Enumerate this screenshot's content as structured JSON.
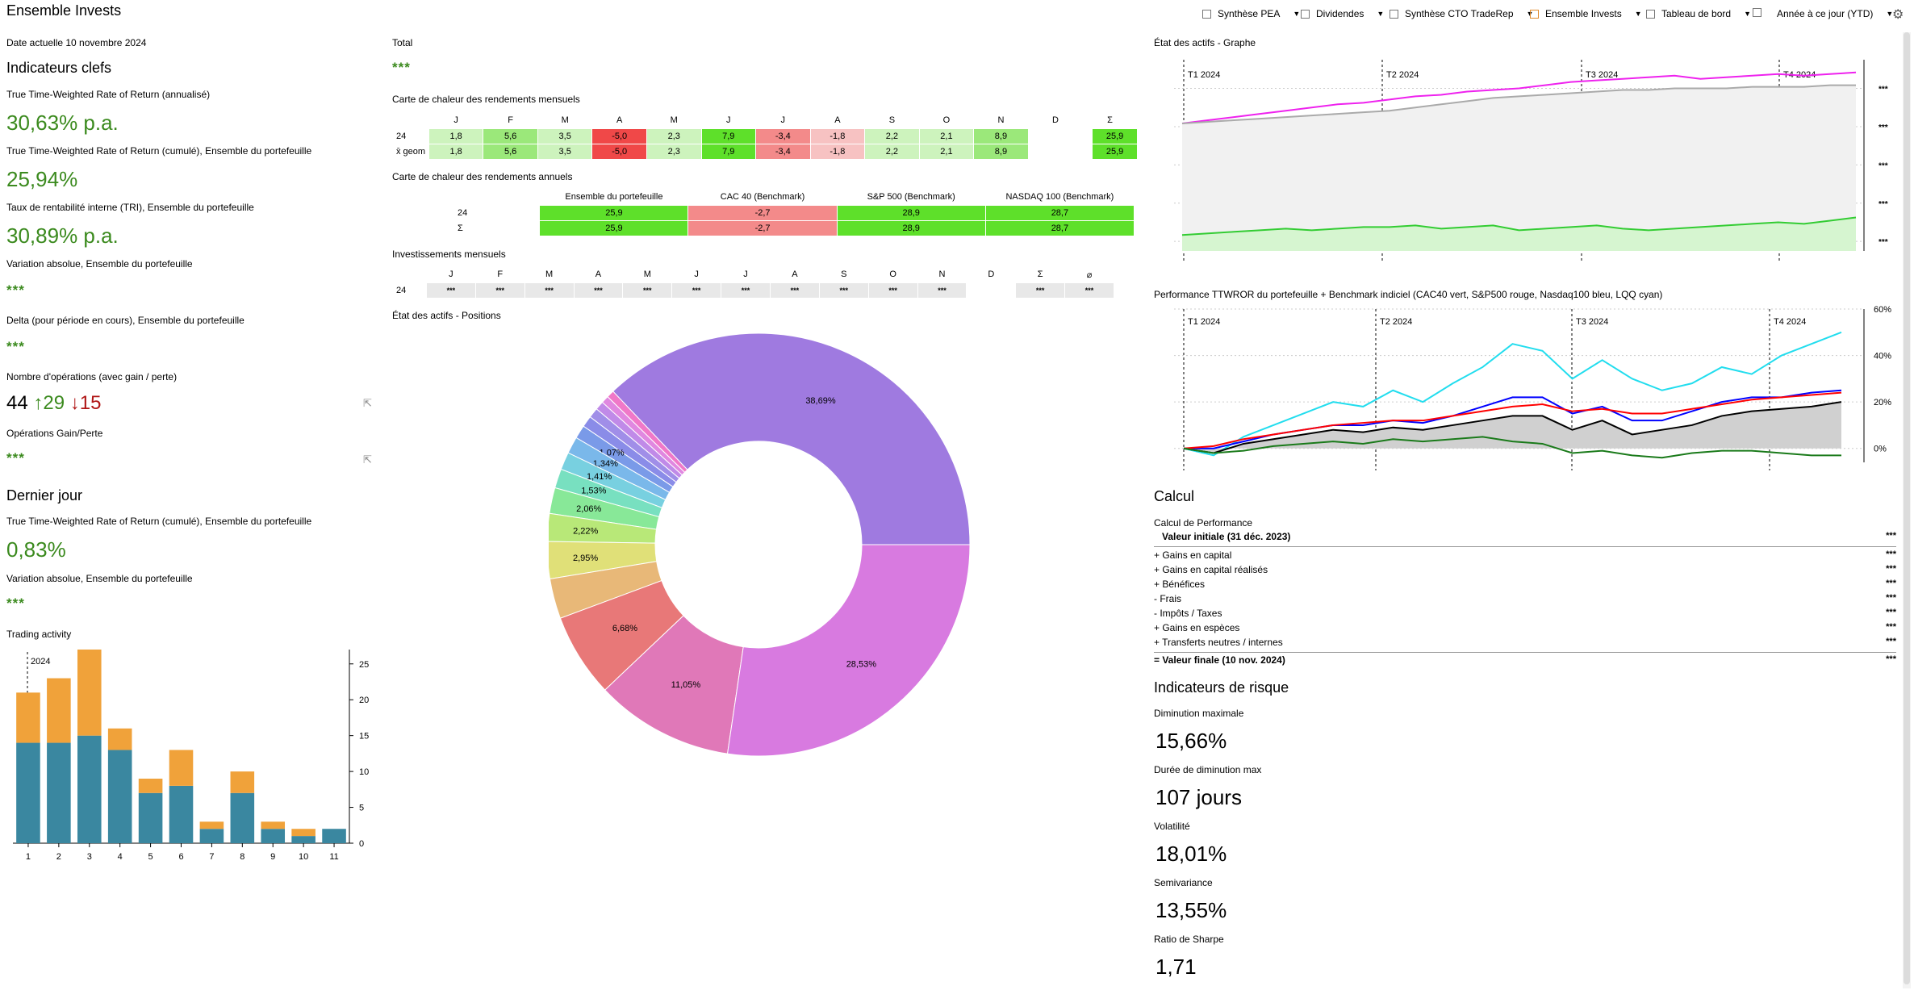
{
  "app": {
    "title": "Ensemble Invests"
  },
  "toolbar": {
    "items": [
      {
        "label": "Synthèse PEA"
      },
      {
        "label": "Dividendes"
      },
      {
        "label": "Synthèse CTO TradeRep"
      },
      {
        "label": "Ensemble Invests"
      },
      {
        "label": "Tableau de bord"
      },
      {
        "label": ""
      }
    ],
    "period": "Année à ce jour (YTD)"
  },
  "left": {
    "date": "Date actuelle 10 novembre 2024",
    "key_indicators_title": "Indicateurs clefs",
    "kpis": [
      {
        "label": "True Time-Weighted Rate of Return (annualisé)",
        "value": "30,63% p.a.",
        "type": "value"
      },
      {
        "label": "True Time-Weighted Rate of Return (cumulé), Ensemble du portefeuille",
        "value": "25,94%",
        "type": "value"
      },
      {
        "label": "Taux de rentabilité interne (TRI), Ensemble du portefeuille",
        "value": "30,89% p.a.",
        "type": "value"
      },
      {
        "label": "Variation absolue, Ensemble du portefeuille",
        "value": "***",
        "type": "stars"
      },
      {
        "label": "Delta (pour période en cours), Ensemble du portefeuille",
        "value": "***",
        "type": "stars"
      }
    ],
    "trades": {
      "label": "Nombre d'opérations (avec gain / perte)",
      "total": "44",
      "up": "↑29",
      "down": "↓15"
    },
    "gainloss": {
      "label": "Opérations Gain/Perte",
      "value": "***"
    },
    "last_day_title": "Dernier jour",
    "last_day": [
      {
        "label": "True Time-Weighted Rate of Return (cumulé), Ensemble du portefeuille",
        "value": "0,83%",
        "type": "value"
      },
      {
        "label": "Variation absolue, Ensemble du portefeuille",
        "value": "***",
        "type": "stars"
      }
    ],
    "trading_title": "Trading activity"
  },
  "colors": {
    "green_value": "#3b8a1e",
    "bar_blue": "#3a87a0",
    "bar_orange": "#f0a23a"
  },
  "chart_data": [
    {
      "type": "bar",
      "stacked": true,
      "title": "Trading activity",
      "annotation": "2024",
      "categories": [
        "1",
        "2",
        "3",
        "4",
        "5",
        "6",
        "7",
        "8",
        "9",
        "10",
        "11"
      ],
      "series": [
        {
          "values": [
            14,
            14,
            15,
            13,
            7,
            8,
            2,
            7,
            2,
            1,
            2
          ]
        },
        {
          "values": [
            7,
            9,
            12,
            3,
            2,
            5,
            1,
            3,
            1,
            1,
            0
          ]
        }
      ],
      "ylim": [
        0,
        27
      ],
      "yticks": [
        "0",
        "5",
        "10",
        "15",
        "20",
        "25"
      ]
    },
    {
      "type": "pie",
      "title": "État des actifs - Positions",
      "donut": true,
      "slices": [
        {
          "label": "38,69%",
          "value": 38.69,
          "color": "#9f7ae0"
        },
        {
          "label": "",
          "value": 0.6,
          "color": "#f078c8"
        },
        {
          "label": "",
          "value": 0.6,
          "color": "#e088e0"
        },
        {
          "label": "",
          "value": 0.7,
          "color": "#c08ae8"
        },
        {
          "label": "",
          "value": 0.8,
          "color": "#a08ee8"
        },
        {
          "label": "",
          "value": 0.9,
          "color": "#8a8ce8"
        },
        {
          "label": "1,07%",
          "value": 1.07,
          "color": "#7a9ae8"
        },
        {
          "label": "1,34%",
          "value": 1.34,
          "color": "#7ab8ea"
        },
        {
          "label": "1,41%",
          "value": 1.41,
          "color": "#78d0e0"
        },
        {
          "label": "1,53%",
          "value": 1.53,
          "color": "#78e0c0"
        },
        {
          "label": "2,06%",
          "value": 2.06,
          "color": "#88e898"
        },
        {
          "label": "2,22%",
          "value": 2.22,
          "color": "#b8e878"
        },
        {
          "label": "2,95%",
          "value": 2.95,
          "color": "#e0e078"
        },
        {
          "label": "",
          "value": 3.2,
          "color": "#e8b878"
        },
        {
          "label": "6,68%",
          "value": 6.68,
          "color": "#e87878"
        },
        {
          "label": "11,05%",
          "value": 11.05,
          "color": "#e078b8"
        },
        {
          "label": "28,53%",
          "value": 28.53,
          "color": "#d87ae0"
        }
      ]
    },
    {
      "type": "area",
      "title": "État des actifs - Graphe",
      "quarters": [
        "T1 2024",
        "T2 2024",
        "T3 2024",
        "T4 2024"
      ],
      "y_tick_labels": [
        "***",
        "***",
        "***",
        "***",
        "***",
        "***"
      ],
      "series": [
        {
          "color": "#ee22ee",
          "values": [
            100,
            102,
            104,
            106,
            108,
            110,
            112,
            113,
            115,
            117,
            118,
            120,
            121,
            122,
            124,
            126,
            127,
            128,
            129,
            130,
            128,
            129,
            130,
            131,
            130,
            131,
            132
          ]
        },
        {
          "color": "#aaaaaa",
          "values": [
            100,
            101,
            102,
            103,
            104,
            105,
            106,
            107,
            108,
            110,
            112,
            114,
            116,
            117,
            118,
            119,
            120,
            121,
            121,
            122,
            122,
            122,
            123,
            123,
            123,
            124,
            124
          ]
        },
        {
          "color": "#33cc33",
          "values": [
            30,
            31,
            32,
            33,
            34,
            33,
            34,
            35,
            35,
            36,
            34,
            35,
            36,
            33,
            34,
            35,
            36,
            34,
            33,
            34,
            35,
            36,
            37,
            38,
            37,
            39,
            41
          ]
        }
      ]
    },
    {
      "type": "line",
      "title": "Performance TTWROR du portefeuille + Benchmark indiciel (CAC40 vert, S&P500 rouge, Nasdaq100 bleu, LQQ cyan)",
      "quarters": [
        "T1 2024",
        "T2 2024",
        "T3 2024",
        "T4 2024"
      ],
      "yticks": [
        "0%",
        "20%",
        "40%",
        "60%"
      ],
      "ylim": [
        -6,
        60
      ],
      "series": [
        {
          "color": "#22ddee",
          "values": [
            0,
            -3,
            5,
            10,
            15,
            20,
            18,
            25,
            20,
            28,
            35,
            45,
            42,
            30,
            38,
            30,
            25,
            28,
            35,
            32,
            40,
            45,
            50
          ]
        },
        {
          "color": "#0000ff",
          "values": [
            0,
            0,
            3,
            6,
            8,
            10,
            10,
            12,
            11,
            14,
            18,
            22,
            22,
            15,
            18,
            12,
            12,
            16,
            20,
            22,
            22,
            24,
            25
          ]
        },
        {
          "color": "#ff0000",
          "values": [
            0,
            1,
            4,
            6,
            8,
            10,
            11,
            12,
            12,
            14,
            16,
            18,
            19,
            16,
            17,
            15,
            15,
            17,
            19,
            21,
            22,
            23,
            24
          ]
        },
        {
          "color": "#000000",
          "values": [
            0,
            -2,
            2,
            4,
            6,
            8,
            7,
            9,
            8,
            10,
            12,
            14,
            14,
            8,
            12,
            6,
            8,
            10,
            14,
            16,
            17,
            18,
            20
          ]
        },
        {
          "color": "#1a7a1a",
          "values": [
            0,
            -2,
            -1,
            1,
            2,
            3,
            2,
            4,
            3,
            4,
            5,
            3,
            2,
            -2,
            -1,
            -3,
            -4,
            -2,
            -1,
            -1,
            -2,
            -3,
            -3
          ]
        }
      ]
    }
  ],
  "middle": {
    "total_label": "Total",
    "total_value": "***",
    "monthly_title": "Carte de chaleur des rendements mensuels",
    "months": [
      "J",
      "F",
      "M",
      "A",
      "M",
      "J",
      "J",
      "A",
      "S",
      "O",
      "N",
      "D",
      "Σ"
    ],
    "monthly_rows": [
      {
        "label": "24",
        "cells": [
          "1,8",
          "5,6",
          "3,5",
          "-5,0",
          "2,3",
          "7,9",
          "-3,4",
          "-1,8",
          "2,2",
          "2,1",
          "8,9",
          "",
          "25,9"
        ],
        "cls": [
          "g1",
          "g2",
          "g1",
          "r3",
          "g1",
          "g3",
          "r2",
          "r1",
          "g1",
          "g1",
          "g2",
          "",
          "g3"
        ]
      },
      {
        "label": "x̄ geom",
        "cells": [
          "1,8",
          "5,6",
          "3,5",
          "-5,0",
          "2,3",
          "7,9",
          "-3,4",
          "-1,8",
          "2,2",
          "2,1",
          "8,9",
          "",
          "25,9"
        ],
        "cls": [
          "g1",
          "g2",
          "g1",
          "r3",
          "g1",
          "g3",
          "r2",
          "r1",
          "g1",
          "g1",
          "g2",
          "",
          "g3"
        ]
      }
    ],
    "annual_title": "Carte de chaleur des rendements annuels",
    "annual_headers": [
      "Ensemble du portefeuille",
      "CAC 40 (Benchmark)",
      "S&P 500 (Benchmark)",
      "NASDAQ 100 (Benchmark)"
    ],
    "annual_rows": [
      {
        "label": "24",
        "cells": [
          "25,9",
          "-2,7",
          "28,9",
          "28,7"
        ],
        "cls": [
          "g3",
          "r2",
          "g3",
          "g3"
        ]
      },
      {
        "label": "Σ",
        "cells": [
          "25,9",
          "-2,7",
          "28,9",
          "28,7"
        ],
        "cls": [
          "g3",
          "r2",
          "g3",
          "g3"
        ]
      }
    ],
    "invest_title": "Investissements mensuels",
    "invest_months": [
      "J",
      "F",
      "M",
      "A",
      "M",
      "J",
      "J",
      "A",
      "S",
      "O",
      "N",
      "D",
      "Σ",
      "⌀"
    ],
    "invest_row": {
      "label": "24",
      "cells": [
        "***",
        "***",
        "***",
        "***",
        "***",
        "***",
        "***",
        "***",
        "***",
        "***",
        "***",
        "",
        "***",
        "***"
      ]
    },
    "positions_title": "État des actifs - Positions"
  },
  "right": {
    "graph_title": "État des actifs - Graphe",
    "perf_title": "Performance TTWROR du portefeuille + Benchmark indiciel (CAC40 vert, S&P500 rouge, Nasdaq100 bleu, LQQ cyan)",
    "calc_title": "Calcul",
    "calc_sub": "Calcul de Performance",
    "calc_initial": {
      "label": "Valeur initiale (31 déc. 2023)",
      "value": "***"
    },
    "calc_rows": [
      {
        "label": "+ Gains en capital",
        "value": "***"
      },
      {
        "label": "+ Gains en capital réalisés",
        "value": "***"
      },
      {
        "label": "+ Bénéfices",
        "value": "***"
      },
      {
        "label": "-  Frais",
        "value": "***"
      },
      {
        "label": "-  Impôts / Taxes",
        "value": "***"
      },
      {
        "label": "+ Gains en espèces",
        "value": "***"
      },
      {
        "label": "+ Transferts neutres / internes",
        "value": "***"
      }
    ],
    "calc_final": {
      "label": "= Valeur finale (10 nov. 2024)",
      "value": "***"
    },
    "risk_title": "Indicateurs de risque",
    "risk": [
      {
        "label": "Diminution maximale",
        "value": "15,66%"
      },
      {
        "label": "Durée de diminution max",
        "value": "107 jours"
      },
      {
        "label": "Volatilité",
        "value": "18,01%"
      },
      {
        "label": "Semivariance",
        "value": "13,55%"
      },
      {
        "label": "Ratio de Sharpe",
        "value": "1,71"
      }
    ]
  }
}
